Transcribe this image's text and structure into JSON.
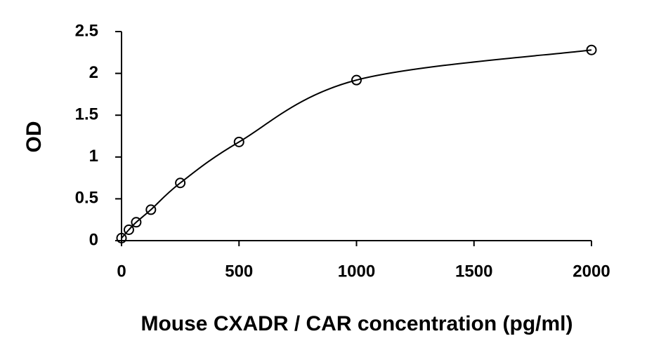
{
  "chart_data": {
    "type": "scatter",
    "x_label": "Mouse CXADR / CAR concentration (pg/ml)",
    "y_label": "OD",
    "series": [
      {
        "color": "#000000",
        "x": [
          0,
          31.25,
          62.5,
          125,
          250,
          500,
          1000,
          2000
        ],
        "values": [
          0.03,
          0.13,
          0.22,
          0.37,
          0.69,
          1.18,
          1.92,
          2.28
        ]
      }
    ],
    "curve": true,
    "xlim": [
      0,
      2000
    ],
    "xticks": [
      0,
      500,
      1000,
      1500,
      2000
    ],
    "ylim": [
      0,
      2.5
    ],
    "yticks": [
      0,
      0.5,
      1,
      1.5,
      2,
      2.5
    ],
    "grid": false
  }
}
